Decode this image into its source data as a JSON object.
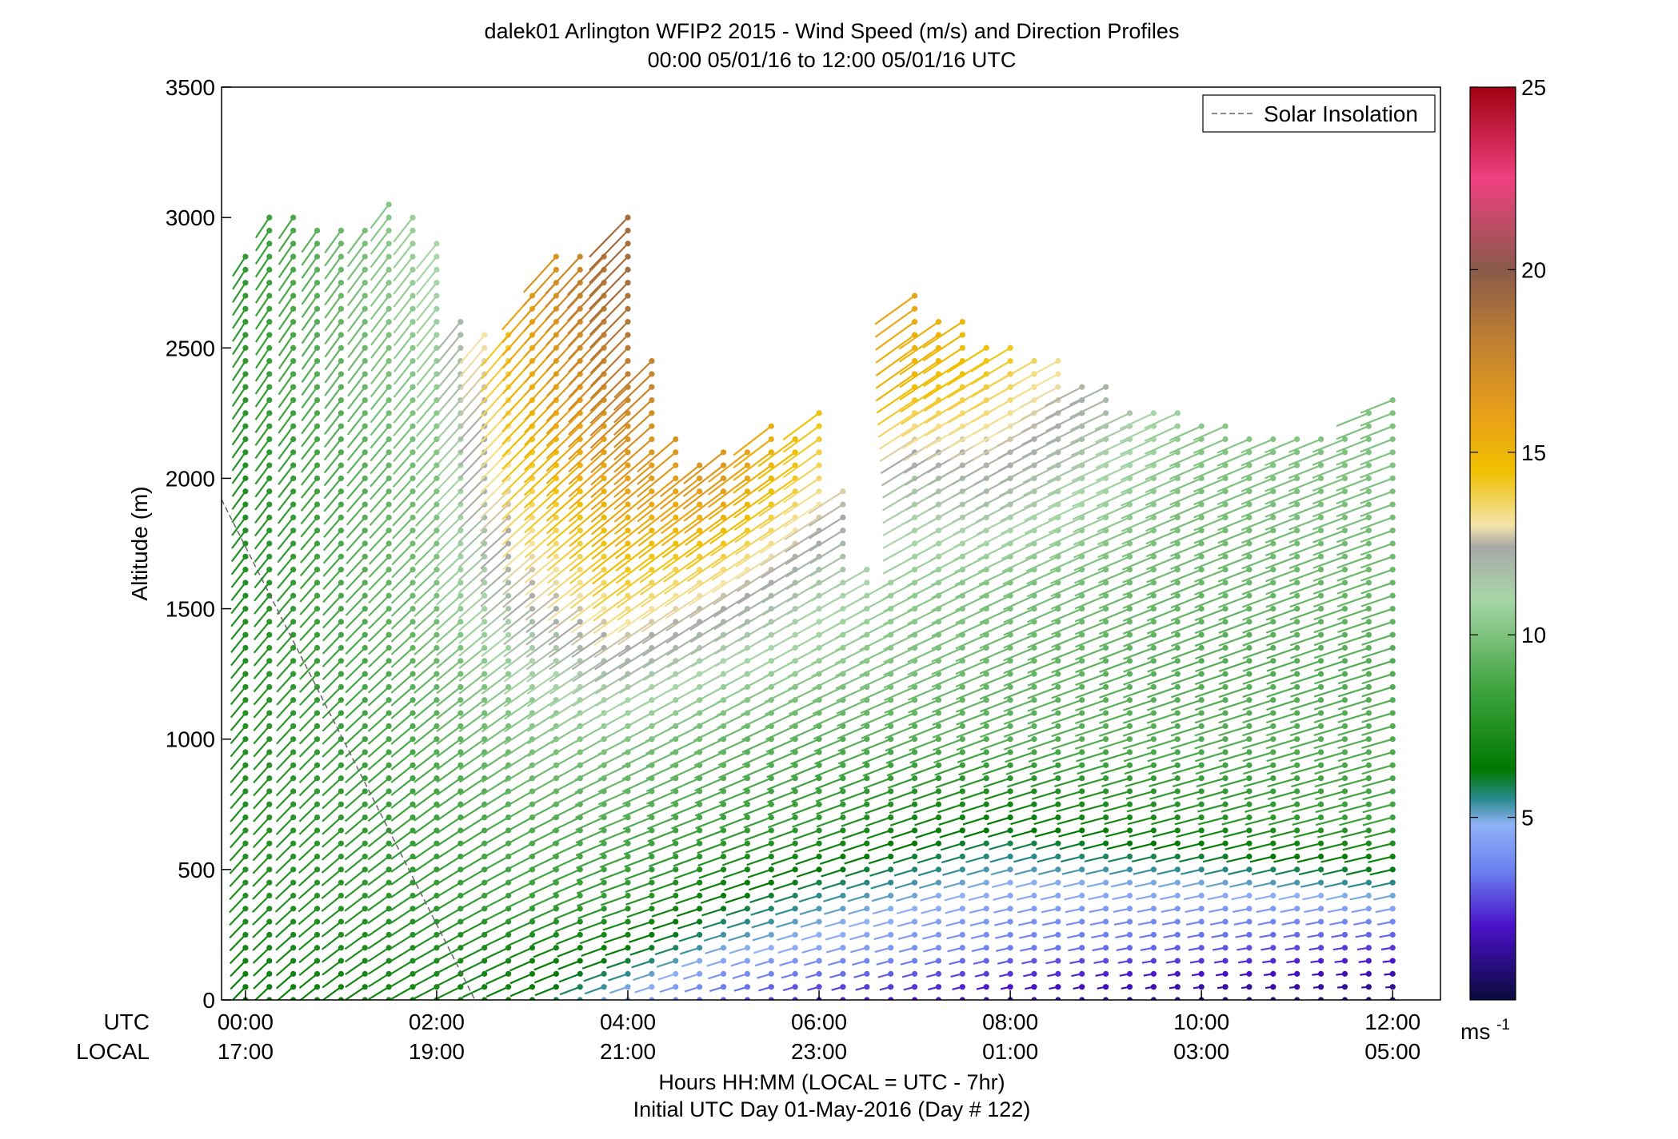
{
  "chart_data": {
    "type": "scatter",
    "title_line1": "dalek01 Arlington WFIP2 2015 - Wind Speed (m/s) and Direction Profiles",
    "title_line2": "00:00 05/01/16 to 12:00 05/01/16  UTC",
    "ylabel": "Altitude (m)",
    "xlabel_line1": "Hours HH:MM  (LOCAL = UTC - 7hr)",
    "xlabel_line2": "Initial UTC Day 01-May-2016 (Day # 122)",
    "axis_row_labels": {
      "utc": "UTC",
      "local": "LOCAL"
    },
    "x_range_hours": [
      -0.25,
      12.5
    ],
    "ylim": [
      0,
      3500
    ],
    "y_ticks": [
      "0",
      "500",
      "1000",
      "1500",
      "2000",
      "2500",
      "3000",
      "3500"
    ],
    "x_ticks": [
      {
        "hour": 0,
        "utc": "00:00",
        "local": "17:00"
      },
      {
        "hour": 2,
        "utc": "02:00",
        "local": "19:00"
      },
      {
        "hour": 4,
        "utc": "04:00",
        "local": "21:00"
      },
      {
        "hour": 6,
        "utc": "06:00",
        "local": "23:00"
      },
      {
        "hour": 8,
        "utc": "08:00",
        "local": "01:00"
      },
      {
        "hour": 10,
        "utc": "10:00",
        "local": "03:00"
      },
      {
        "hour": 12,
        "utc": "12:00",
        "local": "05:00"
      }
    ],
    "legend": {
      "label": "Solar Insolation",
      "placement": "top-right",
      "line_color": "#666666"
    },
    "solar_insolation": {
      "x_hours": [
        -0.5,
        2.4
      ],
      "y_m": [
        2100,
        0
      ]
    },
    "colorbar": {
      "range": [
        0,
        25
      ],
      "ticks": [
        "5",
        "10",
        "15",
        "20",
        "25"
      ],
      "unit_label": "ms",
      "unit_superscript": "-1",
      "colors": [
        [
          0,
          "#0a0a3c"
        ],
        [
          2,
          "#4a10c8"
        ],
        [
          3.5,
          "#6a7ef0"
        ],
        [
          4.8,
          "#8fb2f6"
        ],
        [
          5.5,
          "#2a8a90"
        ],
        [
          6.3,
          "#007800"
        ],
        [
          8.5,
          "#3fa33f"
        ],
        [
          11,
          "#a8d6a8"
        ],
        [
          12.4,
          "#a8a8a8"
        ],
        [
          13,
          "#f4e4a8"
        ],
        [
          14.5,
          "#f0c000"
        ],
        [
          16,
          "#e8a018"
        ],
        [
          18,
          "#c08030"
        ],
        [
          20,
          "#8a5a4a"
        ],
        [
          22.5,
          "#f04080"
        ],
        [
          25,
          "#a00010"
        ]
      ]
    },
    "profile_times_hours": [
      0,
      0.25,
      0.5,
      0.75,
      1,
      1.25,
      1.5,
      1.75,
      2,
      2.25,
      2.5,
      2.75,
      3,
      3.25,
      3.5,
      3.75,
      4,
      4.25,
      4.5,
      4.75,
      5,
      5.25,
      5.5,
      5.75,
      6,
      6.25,
      6.5,
      6.75,
      7,
      7.25,
      7.5,
      7.75,
      8,
      8.25,
      8.5,
      8.75,
      9,
      9.25,
      9.5,
      9.75,
      10,
      10.25,
      10.5,
      10.75,
      11,
      11.25,
      11.5,
      11.75,
      12
    ],
    "profile_top_m": [
      2850,
      3000,
      3000,
      2950,
      2950,
      2950,
      3050,
      3000,
      2900,
      2600,
      2550,
      2550,
      2700,
      2850,
      2850,
      2850,
      3000,
      2450,
      2150,
      2050,
      2100,
      2100,
      2200,
      2150,
      2250,
      1950,
      1650,
      1600,
      2700,
      2600,
      2600,
      2500,
      2500,
      2450,
      2450,
      2350,
      2350,
      2250,
      2250,
      2250,
      2200,
      2200,
      2150,
      2150,
      2150,
      2150,
      2150,
      2250,
      2300
    ],
    "vertical_spacing_m": 50,
    "speed_layers": {
      "altitude_m": [
        0,
        200,
        400,
        700,
        1000,
        1300,
        1600,
        2000,
        2400,
        2800
      ],
      "hours": [
        0,
        2,
        3,
        4,
        5,
        6,
        7,
        8,
        10,
        12
      ],
      "speed_ms": [
        [
          6.5,
          7.0,
          6.5,
          4.5,
          3.0,
          2.2,
          2.0,
          1.5,
          1.0,
          0.8
        ],
        [
          7.0,
          7.5,
          7.0,
          6.5,
          5.0,
          4.5,
          4.0,
          3.5,
          3.0,
          2.5
        ],
        [
          7.5,
          8.0,
          8.5,
          8.0,
          6.5,
          5.5,
          5.0,
          4.5,
          4.5,
          5.0
        ],
        [
          7.5,
          8.5,
          9.0,
          9.0,
          8.5,
          8.0,
          7.0,
          6.5,
          7.5,
          8.5
        ],
        [
          7.5,
          9.0,
          10.0,
          10.0,
          9.5,
          9.0,
          9.0,
          9.0,
          9.0,
          9.0
        ],
        [
          7.5,
          9.5,
          11.0,
          12.0,
          11.0,
          10.5,
          10.0,
          9.5,
          9.0,
          9.0
        ],
        [
          7.5,
          10.0,
          12.5,
          14.0,
          13.0,
          11.5,
          10.5,
          10.0,
          9.5,
          9.5
        ],
        [
          7.5,
          10.0,
          14.0,
          16.0,
          16.5,
          13.5,
          11.5,
          12.0,
          10.0,
          10.0
        ],
        [
          8.0,
          10.5,
          15.0,
          18.0,
          17.0,
          15.0,
          15.0,
          14.0,
          10.5,
          10.0
        ],
        [
          8.0,
          11.0,
          16.0,
          19.0,
          17.0,
          15.0,
          16.0,
          15.0,
          10.5,
          10.0
        ]
      ]
    },
    "direction_from_deg": {
      "altitude_m": [
        0,
        300,
        700,
        1500,
        2500
      ],
      "hours": [
        0,
        2,
        4,
        7,
        9,
        12
      ],
      "deg": [
        [
          215,
          235,
          245,
          250,
          255,
          265
        ],
        [
          215,
          230,
          245,
          250,
          255,
          255
        ],
        [
          212,
          225,
          240,
          245,
          250,
          250
        ],
        [
          210,
          218,
          225,
          235,
          240,
          245
        ],
        [
          205,
          210,
          215,
          225,
          235,
          240
        ]
      ]
    }
  }
}
